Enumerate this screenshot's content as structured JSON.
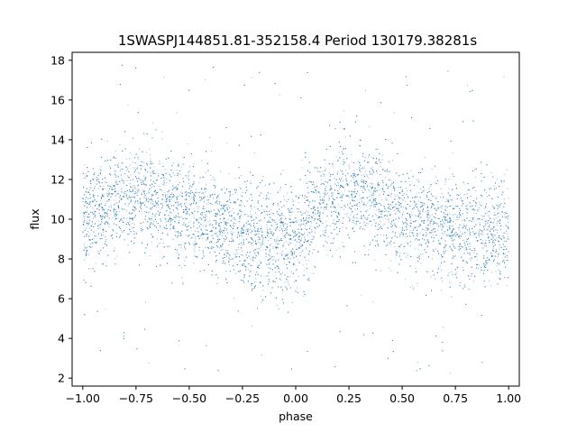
{
  "chart_data": {
    "type": "scatter",
    "title": "1SWASPJ144851.81-352158.4 Period 130179.38281s",
    "xlabel": "phase",
    "ylabel": "flux",
    "xlim": [
      -1.05,
      1.05
    ],
    "ylim": [
      1.6,
      18.4
    ],
    "x_ticks": [
      -1.0,
      -0.75,
      -0.5,
      -0.25,
      0.0,
      0.25,
      0.5,
      0.75,
      1.0
    ],
    "x_tick_labels": [
      "−1.00",
      "−0.75",
      "−0.50",
      "−0.25",
      "0.00",
      "0.25",
      "0.50",
      "0.75",
      "1.00"
    ],
    "y_ticks": [
      2,
      4,
      6,
      8,
      10,
      12,
      14,
      16,
      18
    ],
    "y_tick_labels": [
      "2",
      "4",
      "6",
      "8",
      "10",
      "12",
      "14",
      "16",
      "18"
    ],
    "grid": false,
    "legend": "none",
    "point_color": "#1f77b4",
    "series": [
      {
        "phase": [
          -1.0,
          -0.9,
          -0.8,
          -0.7,
          -0.6,
          -0.5,
          -0.4,
          -0.3,
          -0.2,
          -0.1,
          0.0,
          0.1,
          0.2,
          0.3,
          0.4,
          0.5,
          0.6,
          0.7,
          0.8,
          0.9,
          1.0
        ],
        "median_flux": [
          10.1,
          10.6,
          11.0,
          11.2,
          10.8,
          10.2,
          9.8,
          9.5,
          9.0,
          8.8,
          9.0,
          10.2,
          11.2,
          11.5,
          10.8,
          10.2,
          9.8,
          9.6,
          9.3,
          9.2,
          9.4
        ],
        "flux_spread": 1.3,
        "flux_min": 2.2,
        "flux_max": 17.8
      }
    ]
  }
}
